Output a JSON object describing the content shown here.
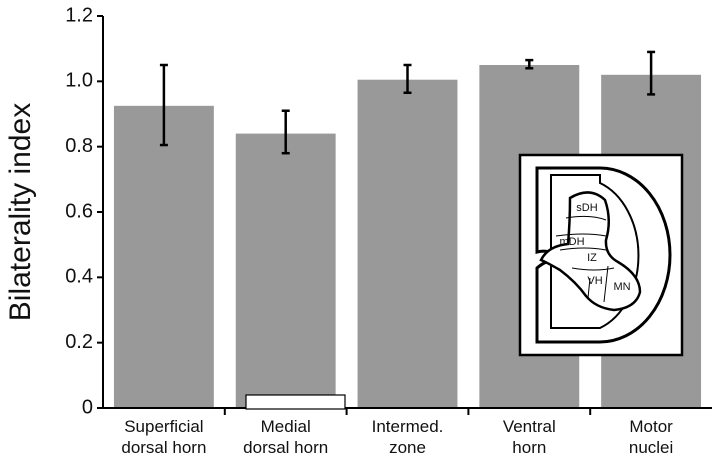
{
  "chart_data": {
    "type": "bar",
    "y_label": "Bilaterality index",
    "categories": [
      "Superficial dorsal horn",
      "Medial dorsal horn",
      "Intermed. zone",
      "Ventral horn",
      "Motor nuclei"
    ],
    "values": [
      0.925,
      0.84,
      1.005,
      1.05,
      1.02
    ],
    "error_bars": [
      [
        0.805,
        1.05
      ],
      [
        0.78,
        0.91
      ],
      [
        0.965,
        1.05
      ],
      [
        1.04,
        1.065
      ],
      [
        0.96,
        1.09
      ]
    ],
    "color": "#999999",
    "ylim": [
      0,
      1.2
    ],
    "yticks": [
      0,
      {
        "value": 0.2,
        "label": "0.2"
      },
      {
        "value": 0.4,
        "label": "0.4"
      },
      {
        "value": 0.6,
        "label": "0.6"
      },
      {
        "value": 0.8,
        "label": "0.8"
      },
      {
        "value": 1.0,
        "label": "1.0"
      },
      {
        "value": 1.2,
        "label": "1.2"
      }
    ]
  },
  "inset": {
    "labels": [
      "sDH",
      "mDH",
      "IZ",
      "VH",
      "MN"
    ]
  }
}
